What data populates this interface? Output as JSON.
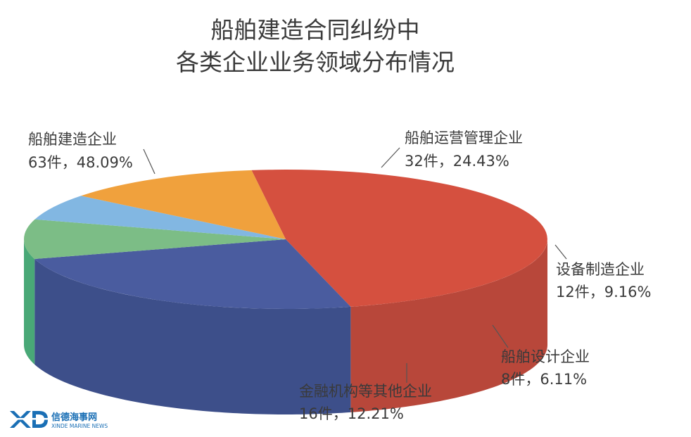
{
  "chart_data": {
    "type": "pie",
    "style": "3d",
    "title": [
      "船舶建造合同纠纷中",
      "各类企业业务领域分布情况"
    ],
    "slices": [
      {
        "name": "船舶建造企业",
        "count": 63,
        "count_label": "63件",
        "percent": 48.09,
        "percent_label": "48.09%",
        "color": "#d5503f",
        "side_color": "#b8473a"
      },
      {
        "name": "船舶运营管理企业",
        "count": 32,
        "count_label": "32件",
        "percent": 24.43,
        "percent_label": "24.43%",
        "color": "#4a5c9f",
        "side_color": "#3d4f8a"
      },
      {
        "name": "设备制造企业",
        "count": 12,
        "count_label": "12件",
        "percent": 9.16,
        "percent_label": "9.16%",
        "color": "#7cbd86",
        "side_color": "#49a877"
      },
      {
        "name": "船舶设计企业",
        "count": 8,
        "count_label": "8件",
        "percent": 6.11,
        "percent_label": "6.11%",
        "color": "#82b7e2",
        "side_color": "#4d8fd0"
      },
      {
        "name": "金融机构等其他企业",
        "count": 16,
        "count_label": "16件",
        "percent": 12.21,
        "percent_label": "12.21%",
        "color": "#f0a13d",
        "side_color": "#d8922f"
      }
    ]
  },
  "watermark": {
    "logo": "XD",
    "name": "信德海事网",
    "sub": "XINDE MARINE NEWS"
  }
}
